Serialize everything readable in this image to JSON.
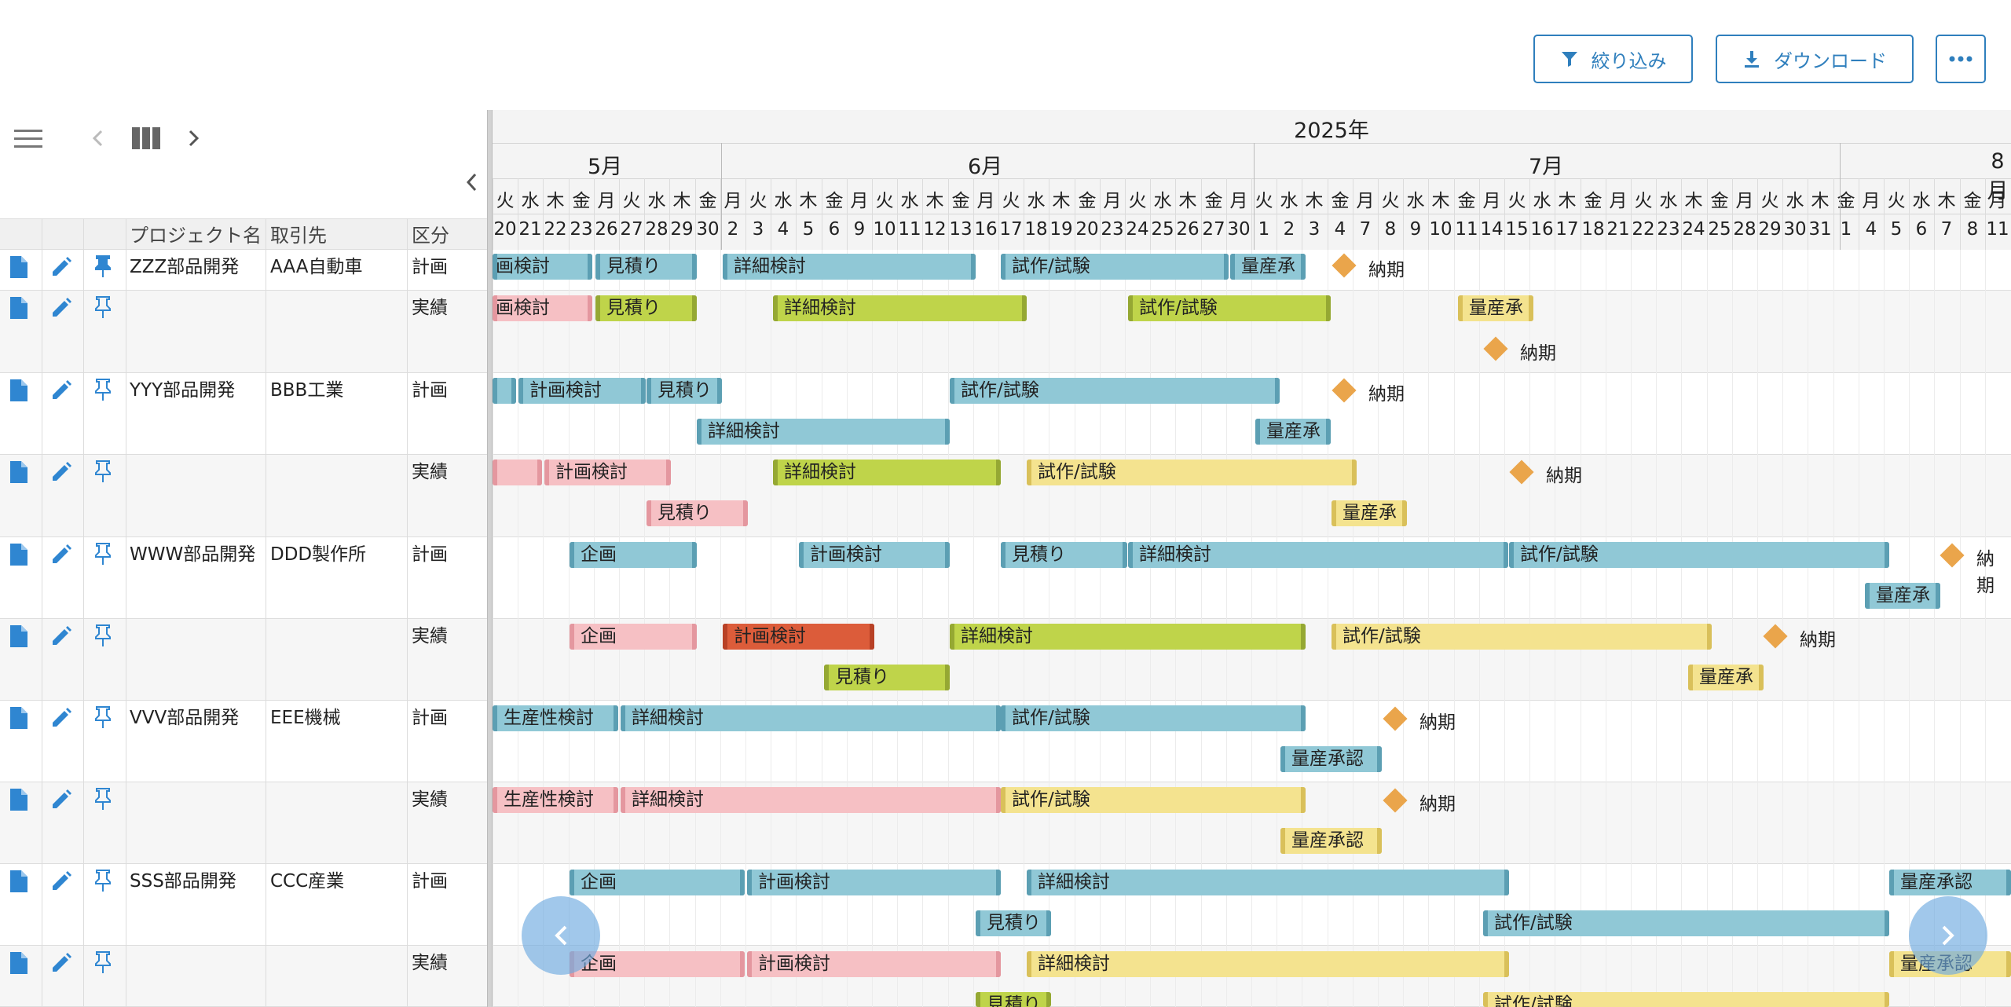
{
  "toolbar": {
    "filter_label": "絞り込み",
    "download_label": "ダウンロード",
    "more_label": "…"
  },
  "columns": {
    "project": "プロジェクト名",
    "client": "取引先",
    "kind": "区分"
  },
  "timeline": {
    "year": "2025年",
    "months": [
      "5月",
      "6月",
      "7月",
      "8月"
    ],
    "days": [
      "20",
      "21",
      "22",
      "23",
      "26",
      "27",
      "28",
      "29",
      "30",
      "2",
      "3",
      "4",
      "5",
      "6",
      "9",
      "10",
      "11",
      "12",
      "13",
      "16",
      "17",
      "18",
      "19",
      "20",
      "23",
      "24",
      "25",
      "26",
      "27",
      "30",
      "1",
      "2",
      "3",
      "4",
      "7",
      "8",
      "9",
      "10",
      "11",
      "14",
      "15",
      "16",
      "17",
      "18",
      "21",
      "22",
      "23",
      "24",
      "25",
      "28",
      "29",
      "30",
      "31",
      "1",
      "4",
      "5",
      "6",
      "7",
      "8",
      "11"
    ],
    "weekdays": [
      "火",
      "水",
      "木",
      "金",
      "月",
      "火",
      "水",
      "木",
      "金",
      "月",
      "火",
      "水",
      "木",
      "金",
      "月",
      "火",
      "水",
      "木",
      "金",
      "月",
      "火",
      "水",
      "木",
      "金",
      "月",
      "火",
      "水",
      "木",
      "金",
      "月",
      "火",
      "水",
      "木",
      "金",
      "月",
      "火",
      "水",
      "木",
      "金",
      "月",
      "火",
      "水",
      "木",
      "金",
      "月",
      "火",
      "水",
      "木",
      "金",
      "月",
      "火",
      "水",
      "木",
      "金",
      "月",
      "火",
      "水",
      "木",
      "金",
      "月"
    ]
  },
  "rows": [
    {
      "project": "ZZZ部品開発",
      "client": "AAA自動車",
      "kind": "計画"
    },
    {
      "project": "",
      "client": "",
      "kind": "実績"
    },
    {
      "project": "YYY部品開発",
      "client": "BBB工業",
      "kind": "計画"
    },
    {
      "project": "",
      "client": "",
      "kind": "実績"
    },
    {
      "project": "WWW部品開発",
      "client": "DDD製作所",
      "kind": "計画"
    },
    {
      "project": "",
      "client": "",
      "kind": "実績"
    },
    {
      "project": "VVV部品開発",
      "client": "EEE機械",
      "kind": "計画"
    },
    {
      "project": "",
      "client": "",
      "kind": "実績"
    },
    {
      "project": "SSS部品開発",
      "client": "CCC産業",
      "kind": "計画"
    },
    {
      "project": "",
      "client": "",
      "kind": "実績"
    }
  ],
  "bar_labels": {
    "kikaku": "企画",
    "keikaku": "計画検討",
    "keikaku_cut": "画検討",
    "mitsumori": "見積り",
    "shousai": "詳細検討",
    "shisaku": "試作/試験",
    "shisaku_cut": "試作/試験",
    "ryousan": "量産承",
    "ryousan_full": "量産承認",
    "seisansei": "生産性検討",
    "nouki": "納期",
    "nouki_cut": "納期"
  },
  "colors": {
    "plan": "#90c8d6",
    "actual_pending": "#f6c0c4",
    "actual_done": "#bfd44a",
    "actual_progress": "#f4e38f",
    "delayed": "#dc5c3a",
    "milestone": "#eaa54b",
    "accent": "#2f7fbd"
  },
  "icons": [
    "filter-icon",
    "download-icon",
    "more-icon",
    "menu-icon",
    "chevron-left-icon",
    "columns-icon",
    "chevron-right-icon",
    "collapse-left-icon",
    "document-icon",
    "pencil-icon",
    "pin-icon"
  ]
}
